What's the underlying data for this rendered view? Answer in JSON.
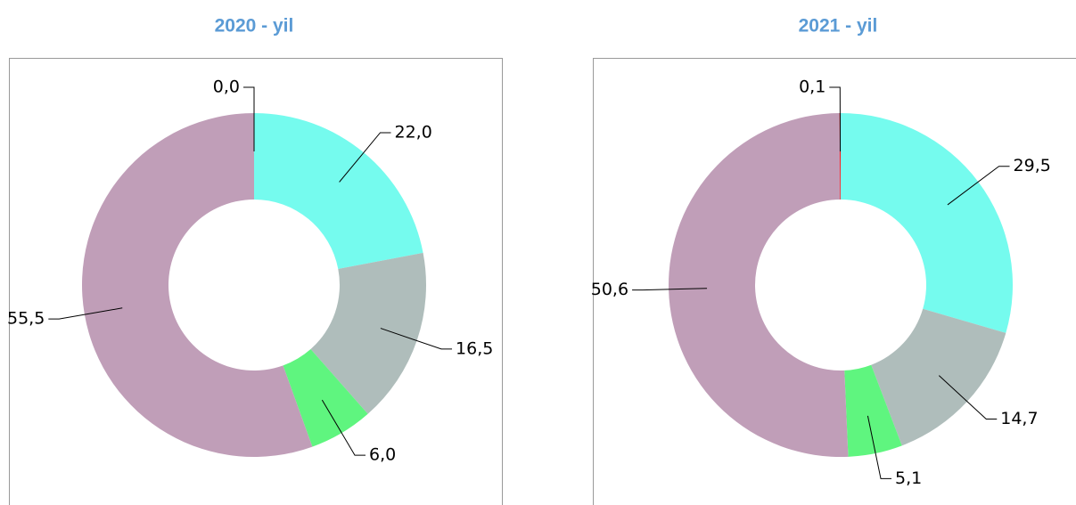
{
  "chart_data": [
    {
      "type": "donut",
      "title": "2020 -  yil",
      "categories": [
        null,
        null,
        null,
        null,
        null
      ],
      "values": [
        22.0,
        16.5,
        6.0,
        55.5,
        0.0
      ],
      "value_labels": [
        "22,0",
        "16,5",
        "6,0",
        "55,5",
        "0,0"
      ],
      "colors": [
        "#75FBEE",
        "#AFBDBB",
        "#5FF57F",
        "#C09EB8",
        "#FF0000"
      ]
    },
    {
      "type": "donut",
      "title": "2021 -  yil",
      "categories": [
        null,
        null,
        null,
        null,
        null
      ],
      "values": [
        29.5,
        14.7,
        5.1,
        50.6,
        0.1
      ],
      "value_labels": [
        "29,5",
        "14,7",
        "5,1",
        "50,6",
        "0,1"
      ],
      "colors": [
        "#75FBEE",
        "#AFBDBB",
        "#5FF57F",
        "#C09EB8",
        "#FF0000"
      ]
    }
  ]
}
